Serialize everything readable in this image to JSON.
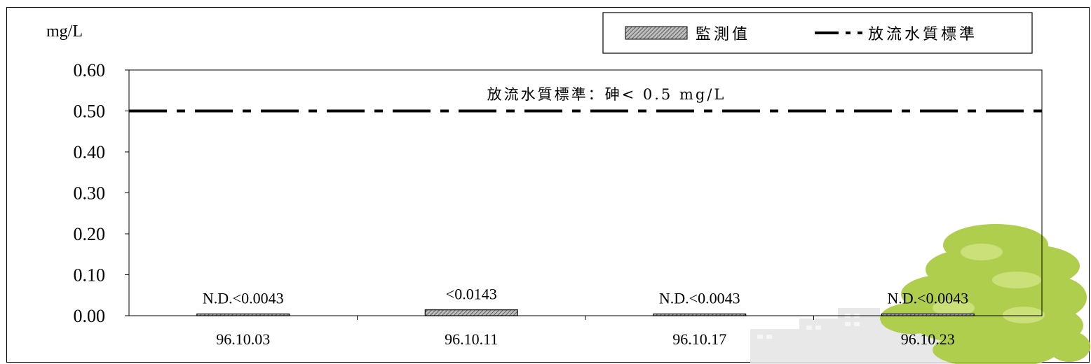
{
  "chart_data": {
    "type": "bar",
    "ylabel": "mg/L",
    "ylim": [
      0,
      0.6
    ],
    "yticks": [
      "0.00",
      "0.10",
      "0.20",
      "0.30",
      "0.40",
      "0.50",
      "0.60"
    ],
    "categories": [
      "96.10.03",
      "96.10.11",
      "96.10.17",
      "96.10.23"
    ],
    "series": [
      {
        "name": "監測值",
        "values": [
          0.0043,
          0.0143,
          0.0043,
          0.0043
        ],
        "data_labels": [
          "N.D.<0.0043",
          "<0.0143",
          "N.D.<0.0043",
          "N.D.<0.0043"
        ],
        "color": "#888888"
      }
    ],
    "standard_line": {
      "name": "放流水質標準",
      "value": 0.5,
      "annotation": "放流水質標準：砷< 0.5 mg/L",
      "style": "dash-dot"
    },
    "legend": {
      "position": "top-right",
      "entries": [
        "監測值",
        "放流水質標準"
      ]
    },
    "grid": false
  },
  "background_decoration": "tree-and-buildings-illustration"
}
